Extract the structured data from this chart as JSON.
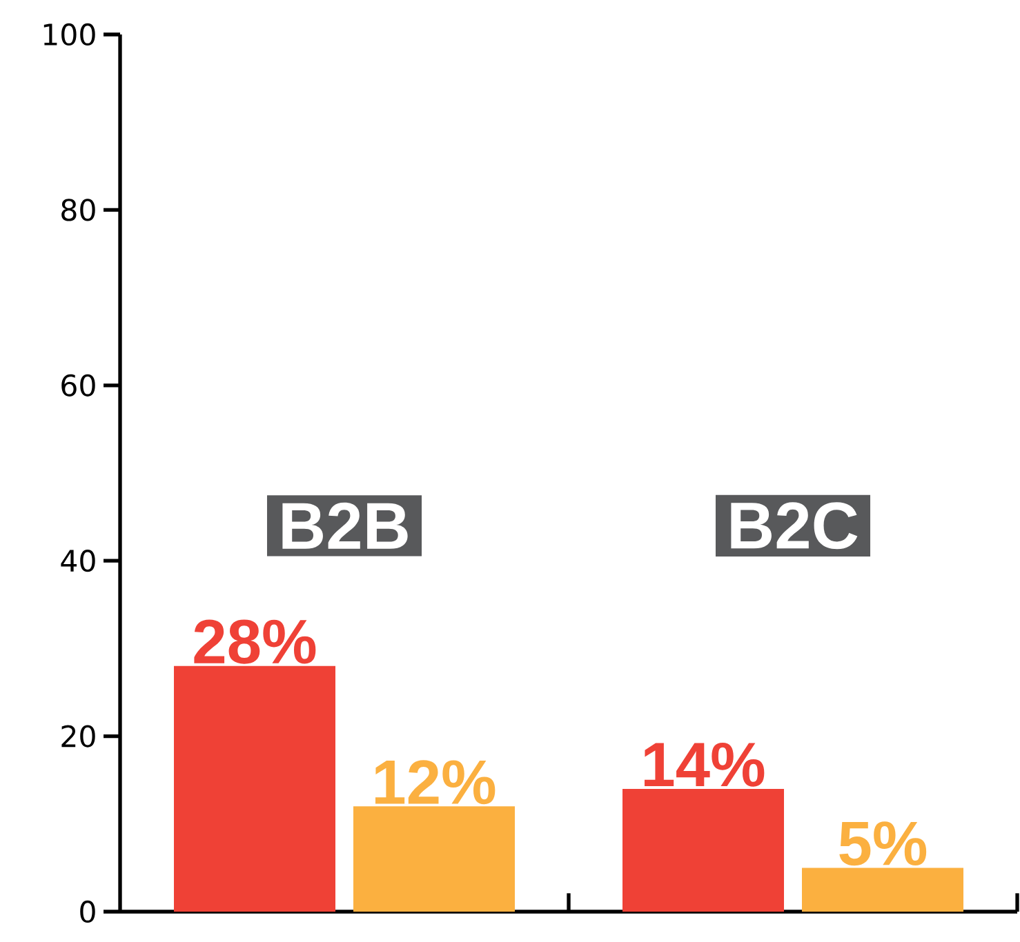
{
  "chart_data": {
    "type": "bar",
    "categories": [
      "B2B",
      "B2C"
    ],
    "series": [
      {
        "color": "#ef4136",
        "values": [
          28,
          14
        ],
        "value_labels": [
          "28%",
          "14%"
        ]
      },
      {
        "color": "#fbb040",
        "values": [
          12,
          5
        ],
        "value_labels": [
          "12%",
          "5%"
        ]
      }
    ],
    "ylim": [
      0,
      100
    ],
    "yticks": [
      0,
      20,
      40,
      60,
      80,
      100
    ]
  }
}
